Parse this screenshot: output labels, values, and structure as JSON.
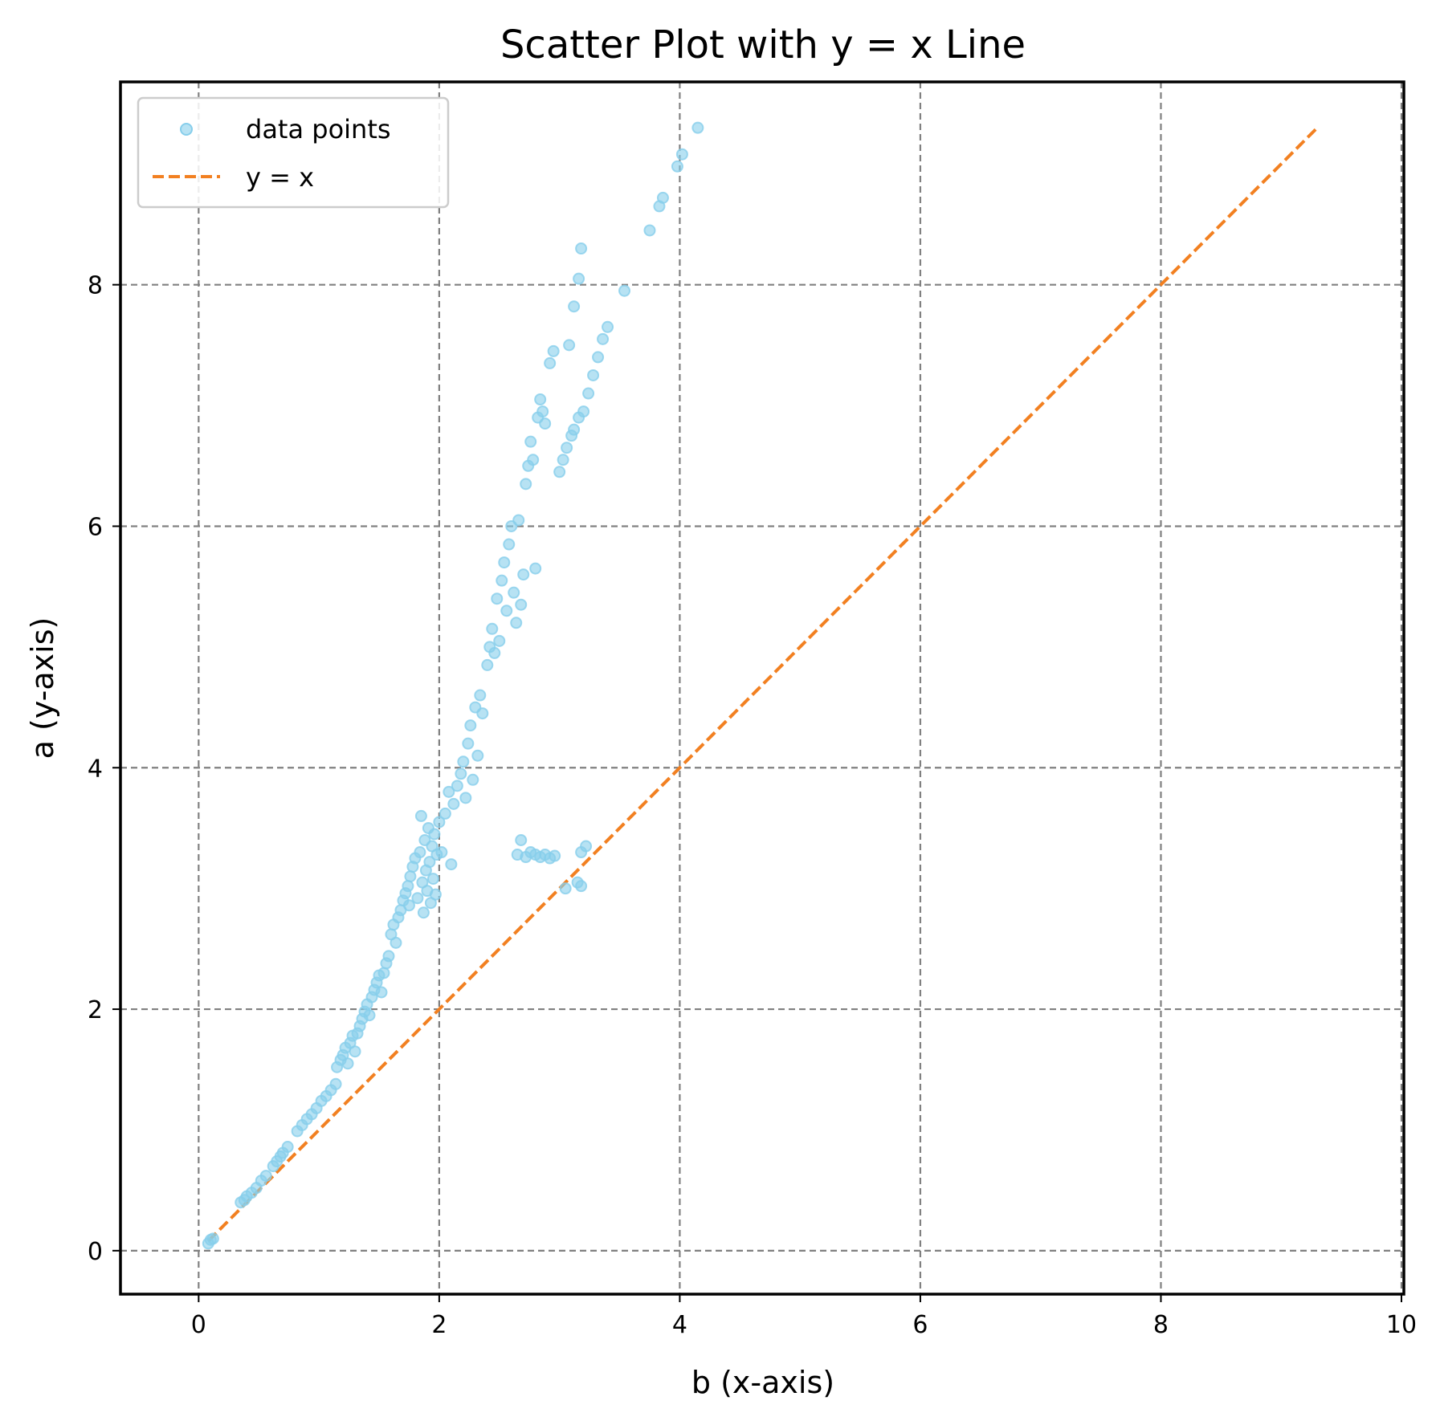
{
  "chart_data": {
    "type": "scatter",
    "title": "Scatter Plot with y = x Line",
    "xlabel": "b (x-axis)",
    "ylabel": "a (y-axis)",
    "xlim": [
      -0.65,
      10.02
    ],
    "ylim": [
      -0.36,
      9.68
    ],
    "xticks": [
      0,
      2,
      4,
      6,
      8,
      10
    ],
    "yticks": [
      0,
      2,
      4,
      6,
      8
    ],
    "grid": true,
    "legend_position": "top-left",
    "series": [
      {
        "name": "data points",
        "kind": "scatter",
        "color": "#87ceeb",
        "points": [
          [
            0.08,
            0.06
          ],
          [
            0.1,
            0.09
          ],
          [
            0.12,
            0.1
          ],
          [
            0.35,
            0.4
          ],
          [
            0.38,
            0.42
          ],
          [
            0.4,
            0.45
          ],
          [
            0.44,
            0.48
          ],
          [
            0.48,
            0.52
          ],
          [
            0.52,
            0.58
          ],
          [
            0.56,
            0.62
          ],
          [
            0.62,
            0.7
          ],
          [
            0.65,
            0.74
          ],
          [
            0.68,
            0.78
          ],
          [
            0.7,
            0.81
          ],
          [
            0.74,
            0.86
          ],
          [
            0.82,
            0.99
          ],
          [
            0.86,
            1.04
          ],
          [
            0.9,
            1.09
          ],
          [
            0.94,
            1.13
          ],
          [
            0.98,
            1.18
          ],
          [
            1.02,
            1.24
          ],
          [
            1.06,
            1.28
          ],
          [
            1.1,
            1.33
          ],
          [
            1.14,
            1.38
          ],
          [
            1.15,
            1.52
          ],
          [
            1.18,
            1.58
          ],
          [
            1.2,
            1.62
          ],
          [
            1.22,
            1.68
          ],
          [
            1.24,
            1.55
          ],
          [
            1.26,
            1.72
          ],
          [
            1.28,
            1.78
          ],
          [
            1.3,
            1.65
          ],
          [
            1.32,
            1.8
          ],
          [
            1.34,
            1.86
          ],
          [
            1.36,
            1.92
          ],
          [
            1.38,
            1.98
          ],
          [
            1.4,
            2.04
          ],
          [
            1.42,
            1.95
          ],
          [
            1.44,
            2.1
          ],
          [
            1.46,
            2.16
          ],
          [
            1.48,
            2.22
          ],
          [
            1.5,
            2.28
          ],
          [
            1.52,
            2.14
          ],
          [
            1.54,
            2.3
          ],
          [
            1.56,
            2.38
          ],
          [
            1.58,
            2.44
          ],
          [
            1.6,
            2.62
          ],
          [
            1.62,
            2.7
          ],
          [
            1.64,
            2.55
          ],
          [
            1.66,
            2.76
          ],
          [
            1.68,
            2.82
          ],
          [
            1.7,
            2.9
          ],
          [
            1.72,
            2.96
          ],
          [
            1.74,
            3.02
          ],
          [
            1.75,
            2.86
          ],
          [
            1.76,
            3.1
          ],
          [
            1.78,
            3.18
          ],
          [
            1.8,
            3.25
          ],
          [
            1.82,
            2.92
          ],
          [
            1.84,
            3.3
          ],
          [
            1.85,
            3.6
          ],
          [
            1.86,
            3.05
          ],
          [
            1.87,
            2.8
          ],
          [
            1.88,
            3.4
          ],
          [
            1.89,
            3.15
          ],
          [
            1.9,
            2.98
          ],
          [
            1.91,
            3.5
          ],
          [
            1.92,
            3.22
          ],
          [
            1.93,
            2.88
          ],
          [
            1.94,
            3.35
          ],
          [
            1.95,
            3.08
          ],
          [
            1.96,
            3.45
          ],
          [
            1.97,
            2.95
          ],
          [
            1.98,
            3.28
          ],
          [
            2.0,
            3.55
          ],
          [
            2.02,
            3.3
          ],
          [
            2.05,
            3.62
          ],
          [
            2.08,
            3.8
          ],
          [
            2.1,
            3.2
          ],
          [
            2.12,
            3.7
          ],
          [
            2.15,
            3.85
          ],
          [
            2.18,
            3.95
          ],
          [
            2.2,
            4.05
          ],
          [
            2.22,
            3.75
          ],
          [
            2.24,
            4.2
          ],
          [
            2.26,
            4.35
          ],
          [
            2.28,
            3.9
          ],
          [
            2.3,
            4.5
          ],
          [
            2.32,
            4.1
          ],
          [
            2.34,
            4.6
          ],
          [
            2.36,
            4.45
          ],
          [
            2.4,
            4.85
          ],
          [
            2.42,
            5.0
          ],
          [
            2.44,
            5.15
          ],
          [
            2.46,
            4.95
          ],
          [
            2.48,
            5.4
          ],
          [
            2.5,
            5.05
          ],
          [
            2.52,
            5.55
          ],
          [
            2.54,
            5.7
          ],
          [
            2.56,
            5.3
          ],
          [
            2.58,
            5.85
          ],
          [
            2.6,
            6.0
          ],
          [
            2.62,
            5.45
          ],
          [
            2.64,
            5.2
          ],
          [
            2.66,
            6.05
          ],
          [
            2.68,
            5.35
          ],
          [
            2.7,
            5.6
          ],
          [
            2.72,
            6.35
          ],
          [
            2.74,
            6.5
          ],
          [
            2.76,
            6.7
          ],
          [
            2.78,
            6.55
          ],
          [
            2.8,
            5.65
          ],
          [
            2.82,
            6.9
          ],
          [
            2.84,
            7.05
          ],
          [
            2.86,
            6.95
          ],
          [
            2.88,
            6.85
          ],
          [
            2.92,
            7.35
          ],
          [
            2.95,
            7.45
          ],
          [
            3.0,
            6.45
          ],
          [
            3.03,
            6.55
          ],
          [
            3.06,
            6.65
          ],
          [
            3.1,
            6.75
          ],
          [
            3.12,
            6.8
          ],
          [
            3.16,
            6.9
          ],
          [
            3.2,
            6.95
          ],
          [
            3.24,
            7.1
          ],
          [
            3.28,
            7.25
          ],
          [
            3.32,
            7.4
          ],
          [
            3.36,
            7.55
          ],
          [
            3.4,
            7.65
          ],
          [
            3.08,
            7.5
          ],
          [
            3.12,
            7.82
          ],
          [
            3.16,
            8.05
          ],
          [
            3.18,
            8.3
          ],
          [
            3.54,
            7.95
          ],
          [
            3.75,
            8.45
          ],
          [
            3.83,
            8.65
          ],
          [
            3.86,
            8.72
          ],
          [
            3.98,
            8.98
          ],
          [
            4.02,
            9.08
          ],
          [
            4.15,
            9.3
          ],
          [
            2.65,
            3.28
          ],
          [
            2.68,
            3.4
          ],
          [
            2.72,
            3.26
          ],
          [
            2.76,
            3.3
          ],
          [
            2.8,
            3.28
          ],
          [
            2.84,
            3.26
          ],
          [
            2.88,
            3.28
          ],
          [
            2.92,
            3.25
          ],
          [
            2.96,
            3.27
          ],
          [
            3.05,
            3.0
          ],
          [
            3.15,
            3.05
          ],
          [
            3.18,
            3.02
          ],
          [
            3.18,
            3.3
          ],
          [
            3.22,
            3.35
          ]
        ]
      },
      {
        "name": "y = x",
        "kind": "line",
        "color": "#f28021",
        "x": [
          0.08,
          9.3
        ],
        "y": [
          0.08,
          9.3
        ]
      }
    ]
  }
}
